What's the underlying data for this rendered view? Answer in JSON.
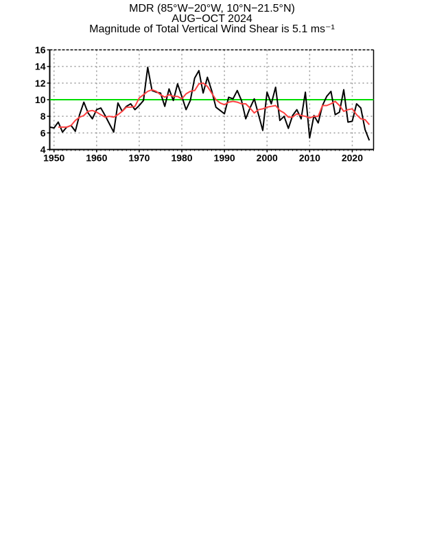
{
  "chart_data": {
    "type": "line",
    "title": "MDR (85°W−20°W, 10°N−21.5°N)",
    "subtitle": "AUG−OCT 2024",
    "subtitle2": "Magnitude of Total Vertical Wind Shear is 5.1 ms⁻¹",
    "xlabel": "",
    "ylabel": "",
    "xlim": [
      1949,
      2025
    ],
    "ylim": [
      4,
      16
    ],
    "xticks": [
      1950,
      1960,
      1970,
      1980,
      1990,
      2000,
      2010,
      2020
    ],
    "yticks": [
      4,
      6,
      8,
      10,
      12,
      14,
      16
    ],
    "grid": true,
    "reference_line": {
      "value": 10,
      "color": "#00dd00"
    },
    "series": [
      {
        "color": "#000000",
        "x": [
          1949,
          1950,
          1951,
          1952,
          1953,
          1954,
          1955,
          1956,
          1957,
          1958,
          1959,
          1960,
          1961,
          1962,
          1963,
          1964,
          1965,
          1966,
          1967,
          1968,
          1969,
          1970,
          1971,
          1972,
          1973,
          1974,
          1975,
          1976,
          1977,
          1978,
          1979,
          1980,
          1981,
          1982,
          1983,
          1984,
          1985,
          1986,
          1987,
          1988,
          1989,
          1990,
          1991,
          1992,
          1993,
          1994,
          1995,
          1996,
          1997,
          1998,
          1999,
          2000,
          2001,
          2002,
          2003,
          2004,
          2005,
          2006,
          2007,
          2008,
          2009,
          2010,
          2011,
          2012,
          2013,
          2014,
          2015,
          2016,
          2017,
          2018,
          2019,
          2020,
          2021,
          2022,
          2023,
          2024
        ],
        "values": [
          6.7,
          6.6,
          7.3,
          6.1,
          6.7,
          6.9,
          6.2,
          8.2,
          9.7,
          8.4,
          7.7,
          8.8,
          9.0,
          8.1,
          7.1,
          6.1,
          9.6,
          8.6,
          9.2,
          9.5,
          8.8,
          9.3,
          9.9,
          13.9,
          11.1,
          10.9,
          10.8,
          9.2,
          11.3,
          9.9,
          11.9,
          10.4,
          8.8,
          9.9,
          12.6,
          13.5,
          10.8,
          12.7,
          11.1,
          9.1,
          8.7,
          8.3,
          10.3,
          10.1,
          11.1,
          9.9,
          7.7,
          9.0,
          10.1,
          8.2,
          6.3,
          10.9,
          9.5,
          11.5,
          7.5,
          8.0,
          6.55,
          8.1,
          8.8,
          7.7,
          10.9,
          5.4,
          8.1,
          7.2,
          9.3,
          10.4,
          11.0,
          8.2,
          8.5,
          11.2,
          7.3,
          7.4,
          9.5,
          9.0,
          6.4,
          5.1
        ]
      },
      {
        "color": "#ff4040",
        "x": [
          1951,
          1952,
          1953,
          1954,
          1955,
          1956,
          1957,
          1958,
          1959,
          1960,
          1961,
          1962,
          1963,
          1964,
          1965,
          1966,
          1967,
          1968,
          1969,
          1970,
          1971,
          1972,
          1973,
          1974,
          1975,
          1976,
          1977,
          1978,
          1979,
          1980,
          1981,
          1982,
          1983,
          1984,
          1985,
          1986,
          1987,
          1988,
          1989,
          1990,
          1991,
          1992,
          1993,
          1994,
          1995,
          1996,
          1997,
          1998,
          1999,
          2000,
          2001,
          2002,
          2003,
          2004,
          2005,
          2006,
          2007,
          2008,
          2009,
          2010,
          2011,
          2012,
          2013,
          2014,
          2015,
          2016,
          2017,
          2018,
          2019,
          2020,
          2021,
          2022,
          2023,
          2024
        ],
        "values": [
          6.7,
          6.7,
          6.7,
          6.9,
          7.5,
          7.9,
          8.1,
          8.6,
          8.7,
          8.5,
          8.2,
          7.9,
          8.0,
          7.9,
          8.2,
          8.6,
          9.1,
          9.1,
          9.2,
          10.2,
          10.6,
          11.0,
          11.2,
          11.0,
          10.6,
          10.3,
          10.6,
          10.4,
          10.4,
          10.1,
          10.7,
          11.0,
          11.1,
          11.9,
          12.0,
          11.6,
          10.8,
          10.0,
          9.6,
          9.4,
          9.7,
          9.8,
          9.7,
          9.5,
          9.5,
          9.0,
          8.4,
          8.8,
          8.9,
          9.1,
          9.2,
          9.3,
          8.7,
          8.4,
          7.9,
          7.9,
          8.3,
          8.1,
          8.0,
          7.8,
          8.0,
          8.0,
          9.3,
          9.3,
          9.5,
          9.8,
          9.3,
          8.6,
          8.8,
          8.9,
          8.2,
          7.7,
          7.6,
          7.0
        ]
      }
    ]
  }
}
